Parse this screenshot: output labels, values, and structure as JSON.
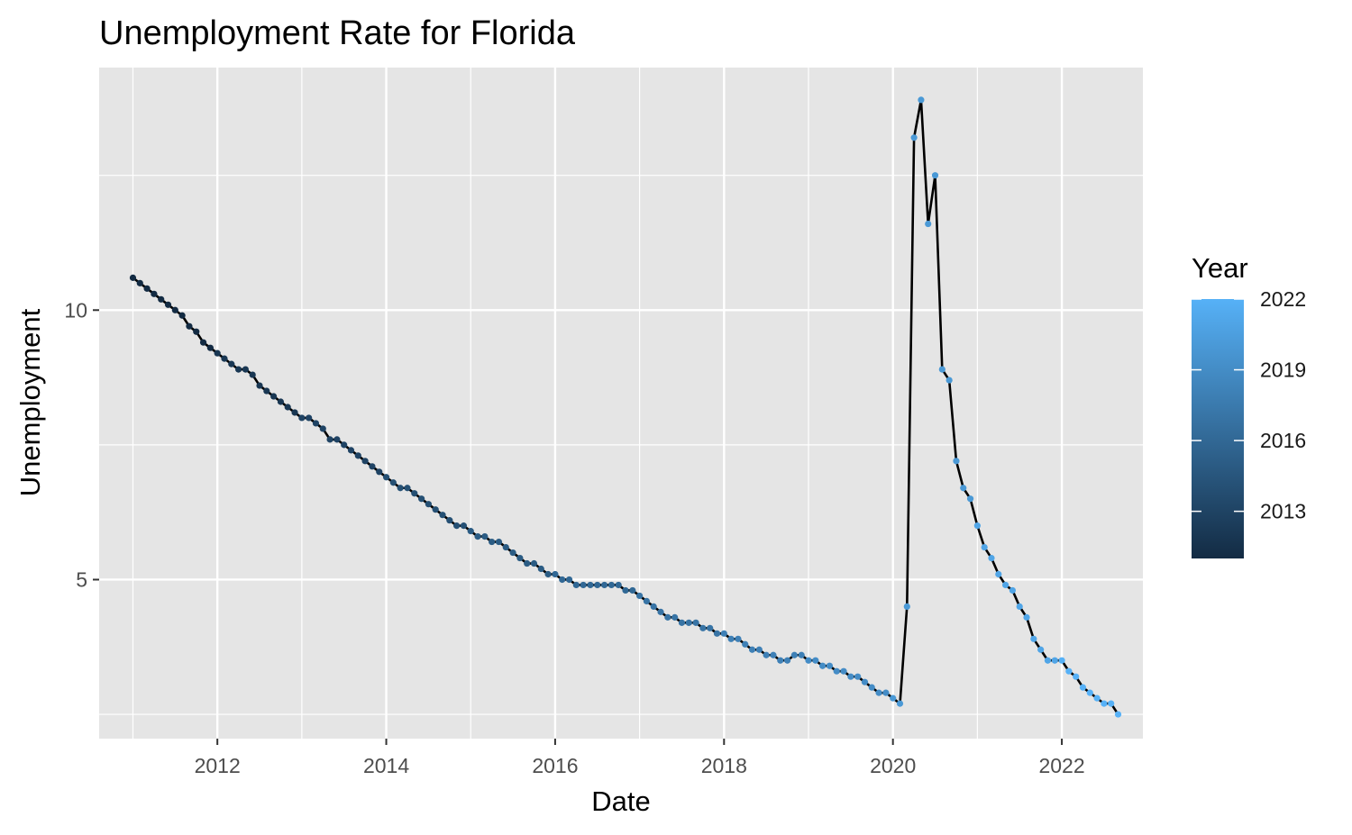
{
  "chart_data": {
    "type": "line",
    "title": "Unemployment Rate for Florida",
    "xlabel": "Date",
    "ylabel": "Unemployment",
    "x_ticks": [
      "2012",
      "2014",
      "2016",
      "2018",
      "2020",
      "2022"
    ],
    "x_tick_values": [
      2012,
      2014,
      2016,
      2018,
      2020,
      2022
    ],
    "y_ticks": [
      "5",
      "10"
    ],
    "y_tick_values": [
      5,
      10
    ],
    "xlim": [
      2010.6,
      2022.96
    ],
    "ylim": [
      2.05,
      14.5
    ],
    "grid": true,
    "panel_background": "#e5e5e5",
    "line_color": "#000000",
    "legend": {
      "title": "Year",
      "position": "right",
      "labels": [
        "2022",
        "2019",
        "2016",
        "2013"
      ],
      "label_values": [
        2022,
        2019,
        2016,
        2013
      ],
      "range": [
        2011,
        2022
      ],
      "color_low": "#132b43",
      "color_high": "#56b1f7"
    },
    "series": [
      {
        "values": [
          [
            "2011-01",
            10.6
          ],
          [
            "2011-02",
            10.5
          ],
          [
            "2011-03",
            10.4
          ],
          [
            "2011-04",
            10.3
          ],
          [
            "2011-05",
            10.2
          ],
          [
            "2011-06",
            10.1
          ],
          [
            "2011-07",
            10.0
          ],
          [
            "2011-08",
            9.9
          ],
          [
            "2011-09",
            9.7
          ],
          [
            "2011-10",
            9.6
          ],
          [
            "2011-11",
            9.4
          ],
          [
            "2011-12",
            9.3
          ],
          [
            "2012-01",
            9.2
          ],
          [
            "2012-02",
            9.1
          ],
          [
            "2012-03",
            9.0
          ],
          [
            "2012-04",
            8.9
          ],
          [
            "2012-05",
            8.9
          ],
          [
            "2012-06",
            8.8
          ],
          [
            "2012-07",
            8.6
          ],
          [
            "2012-08",
            8.5
          ],
          [
            "2012-09",
            8.4
          ],
          [
            "2012-10",
            8.3
          ],
          [
            "2012-11",
            8.2
          ],
          [
            "2012-12",
            8.1
          ],
          [
            "2013-01",
            8.0
          ],
          [
            "2013-02",
            8.0
          ],
          [
            "2013-03",
            7.9
          ],
          [
            "2013-04",
            7.8
          ],
          [
            "2013-05",
            7.6
          ],
          [
            "2013-06",
            7.6
          ],
          [
            "2013-07",
            7.5
          ],
          [
            "2013-08",
            7.4
          ],
          [
            "2013-09",
            7.3
          ],
          [
            "2013-10",
            7.2
          ],
          [
            "2013-11",
            7.1
          ],
          [
            "2013-12",
            7.0
          ],
          [
            "2014-01",
            6.9
          ],
          [
            "2014-02",
            6.8
          ],
          [
            "2014-03",
            6.7
          ],
          [
            "2014-04",
            6.7
          ],
          [
            "2014-05",
            6.6
          ],
          [
            "2014-06",
            6.5
          ],
          [
            "2014-07",
            6.4
          ],
          [
            "2014-08",
            6.3
          ],
          [
            "2014-09",
            6.2
          ],
          [
            "2014-10",
            6.1
          ],
          [
            "2014-11",
            6.0
          ],
          [
            "2014-12",
            6.0
          ],
          [
            "2015-01",
            5.9
          ],
          [
            "2015-02",
            5.8
          ],
          [
            "2015-03",
            5.8
          ],
          [
            "2015-04",
            5.7
          ],
          [
            "2015-05",
            5.7
          ],
          [
            "2015-06",
            5.6
          ],
          [
            "2015-07",
            5.5
          ],
          [
            "2015-08",
            5.4
          ],
          [
            "2015-09",
            5.3
          ],
          [
            "2015-10",
            5.3
          ],
          [
            "2015-11",
            5.2
          ],
          [
            "2015-12",
            5.1
          ],
          [
            "2016-01",
            5.1
          ],
          [
            "2016-02",
            5.0
          ],
          [
            "2016-03",
            5.0
          ],
          [
            "2016-04",
            4.9
          ],
          [
            "2016-05",
            4.9
          ],
          [
            "2016-06",
            4.9
          ],
          [
            "2016-07",
            4.9
          ],
          [
            "2016-08",
            4.9
          ],
          [
            "2016-09",
            4.9
          ],
          [
            "2016-10",
            4.9
          ],
          [
            "2016-11",
            4.8
          ],
          [
            "2016-12",
            4.8
          ],
          [
            "2017-01",
            4.7
          ],
          [
            "2017-02",
            4.6
          ],
          [
            "2017-03",
            4.5
          ],
          [
            "2017-04",
            4.4
          ],
          [
            "2017-05",
            4.3
          ],
          [
            "2017-06",
            4.3
          ],
          [
            "2017-07",
            4.2
          ],
          [
            "2017-08",
            4.2
          ],
          [
            "2017-09",
            4.2
          ],
          [
            "2017-10",
            4.1
          ],
          [
            "2017-11",
            4.1
          ],
          [
            "2017-12",
            4.0
          ],
          [
            "2018-01",
            4.0
          ],
          [
            "2018-02",
            3.9
          ],
          [
            "2018-03",
            3.9
          ],
          [
            "2018-04",
            3.8
          ],
          [
            "2018-05",
            3.7
          ],
          [
            "2018-06",
            3.7
          ],
          [
            "2018-07",
            3.6
          ],
          [
            "2018-08",
            3.6
          ],
          [
            "2018-09",
            3.5
          ],
          [
            "2018-10",
            3.5
          ],
          [
            "2018-11",
            3.6
          ],
          [
            "2018-12",
            3.6
          ],
          [
            "2019-01",
            3.5
          ],
          [
            "2019-02",
            3.5
          ],
          [
            "2019-03",
            3.4
          ],
          [
            "2019-04",
            3.4
          ],
          [
            "2019-05",
            3.3
          ],
          [
            "2019-06",
            3.3
          ],
          [
            "2019-07",
            3.2
          ],
          [
            "2019-08",
            3.2
          ],
          [
            "2019-09",
            3.1
          ],
          [
            "2019-10",
            3.0
          ],
          [
            "2019-11",
            2.9
          ],
          [
            "2019-12",
            2.9
          ],
          [
            "2020-01",
            2.8
          ],
          [
            "2020-02",
            2.7
          ],
          [
            "2020-03",
            4.5
          ],
          [
            "2020-04",
            13.2
          ],
          [
            "2020-05",
            13.9
          ],
          [
            "2020-06",
            11.6
          ],
          [
            "2020-07",
            12.5
          ],
          [
            "2020-08",
            8.9
          ],
          [
            "2020-09",
            8.7
          ],
          [
            "2020-10",
            7.2
          ],
          [
            "2020-11",
            6.7
          ],
          [
            "2020-12",
            6.5
          ],
          [
            "2021-01",
            6.0
          ],
          [
            "2021-02",
            5.6
          ],
          [
            "2021-03",
            5.4
          ],
          [
            "2021-04",
            5.1
          ],
          [
            "2021-05",
            4.9
          ],
          [
            "2021-06",
            4.8
          ],
          [
            "2021-07",
            4.5
          ],
          [
            "2021-08",
            4.3
          ],
          [
            "2021-09",
            3.9
          ],
          [
            "2021-10",
            3.7
          ],
          [
            "2021-11",
            3.5
          ],
          [
            "2021-12",
            3.5
          ],
          [
            "2022-01",
            3.5
          ],
          [
            "2022-02",
            3.3
          ],
          [
            "2022-03",
            3.2
          ],
          [
            "2022-04",
            3.0
          ],
          [
            "2022-05",
            2.9
          ],
          [
            "2022-06",
            2.8
          ],
          [
            "2022-07",
            2.7
          ],
          [
            "2022-08",
            2.7
          ],
          [
            "2022-09",
            2.5
          ]
        ]
      }
    ]
  }
}
